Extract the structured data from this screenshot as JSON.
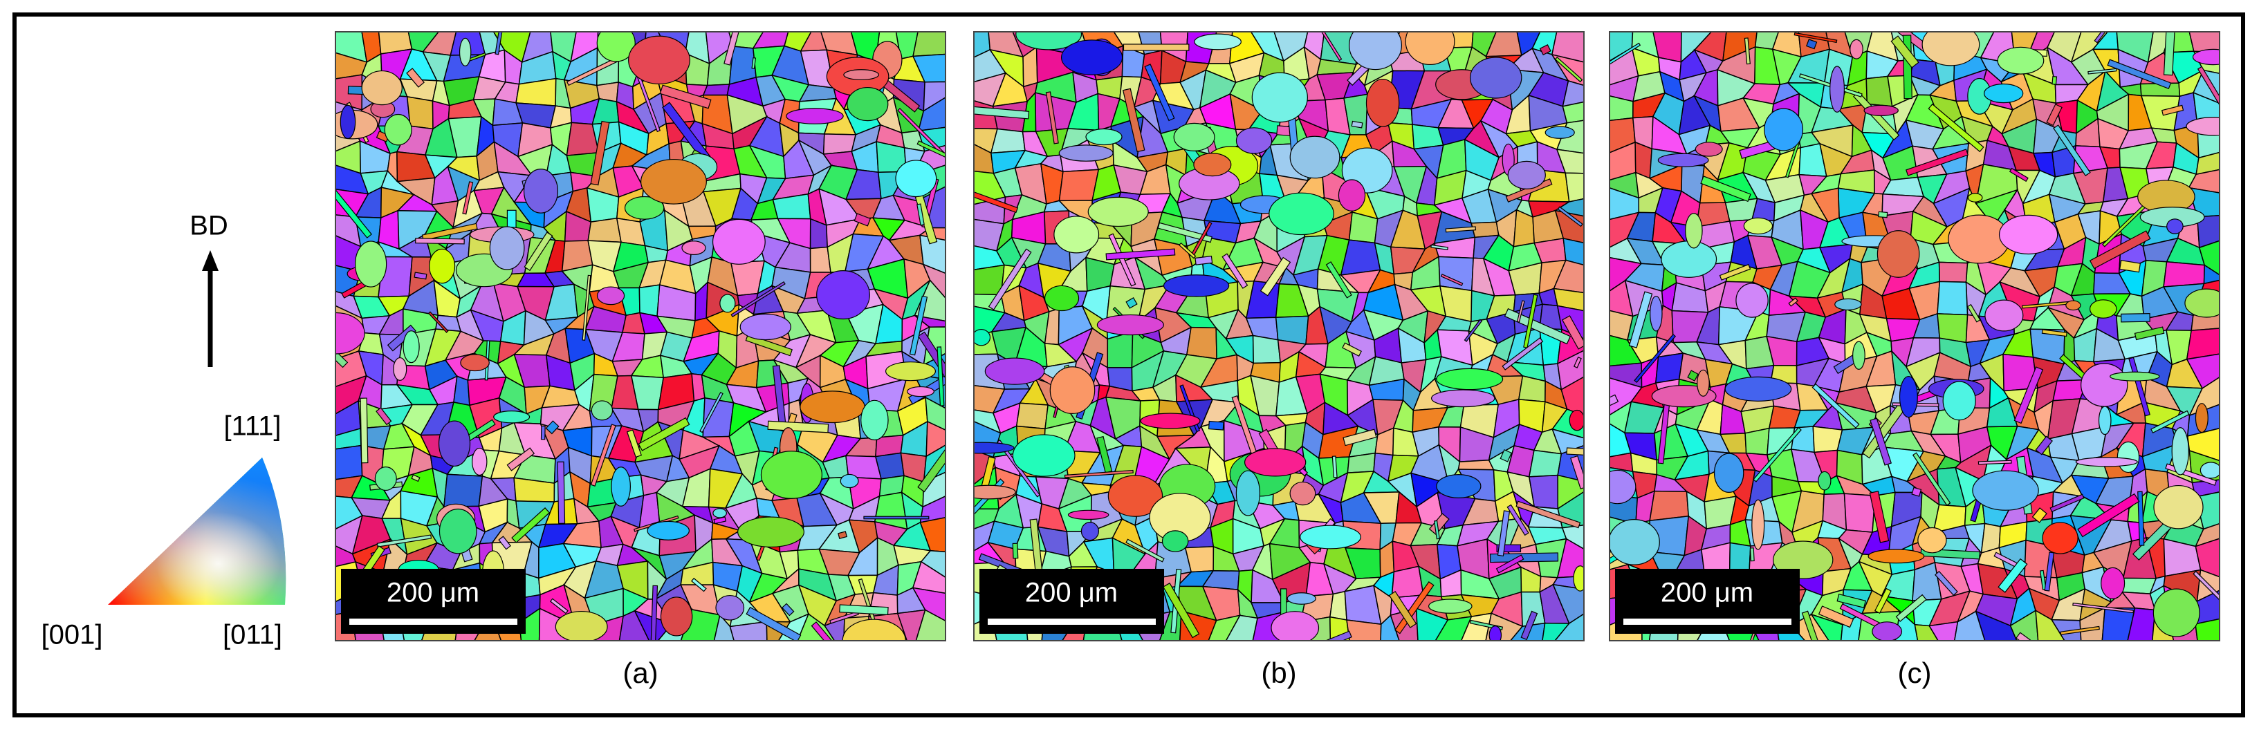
{
  "legend": {
    "direction": "BD",
    "top": "[111]",
    "left": "[001]",
    "right": "[011]"
  },
  "panels": [
    {
      "label": "(a)",
      "scale_bar": "200 μm"
    },
    {
      "label": "(b)",
      "scale_bar": "200 μm"
    },
    {
      "label": "(c)",
      "scale_bar": "200 μm"
    }
  ]
}
